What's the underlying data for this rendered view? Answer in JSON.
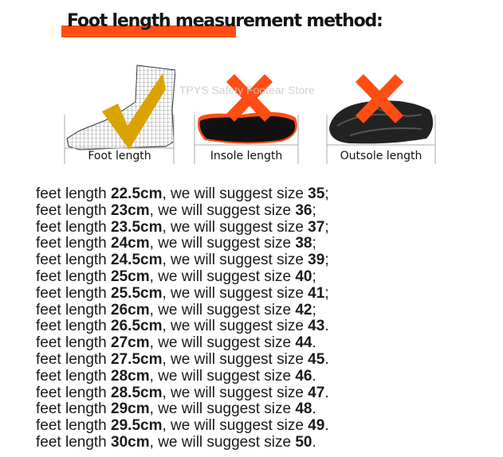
{
  "title": "Foot length measurement method:",
  "watermark": "TPYS Safety Footear Store",
  "panels": [
    {
      "label": "Foot length",
      "mark": "check-icon",
      "mark_color": "#d9a400"
    },
    {
      "label": "Insole length",
      "mark": "cross-icon",
      "mark_color": "#ff4d14"
    },
    {
      "label": "Outsole length",
      "mark": "cross-icon",
      "mark_color": "#ff4d14"
    }
  ],
  "row_text": {
    "prefix": "feet length ",
    "middle": ", we will suggest size "
  },
  "rows": [
    {
      "length": "22.5cm",
      "size": "35",
      "end": ";"
    },
    {
      "length": "23cm",
      "size": "36",
      "end": ";"
    },
    {
      "length": "23.5cm",
      "size": "37",
      "end": ";"
    },
    {
      "length": "24cm",
      "size": "38",
      "end": ";"
    },
    {
      "length": "24.5cm",
      "size": "39",
      "end": ";"
    },
    {
      "length": "25cm",
      "size": "40",
      "end": ";"
    },
    {
      "length": "25.5cm",
      "size": "41",
      "end": ";"
    },
    {
      "length": "26cm",
      "size": "42",
      "end": ";"
    },
    {
      "length": "26.5cm",
      "size": "43",
      "end": "."
    },
    {
      "length": "27cm",
      "size": "44",
      "end": "."
    },
    {
      "length": "27.5cm",
      "size": "45",
      "end": "."
    },
    {
      "length": "28cm",
      "size": "46",
      "end": "."
    },
    {
      "length": "28.5cm",
      "size": "47",
      "end": "."
    },
    {
      "length": "29cm",
      "size": "48",
      "end": "."
    },
    {
      "length": "29.5cm",
      "size": "49",
      "end": "."
    },
    {
      "length": "30cm",
      "size": "50",
      "end": "."
    }
  ],
  "colors": {
    "accent": "#ff4d14",
    "check": "#d9a400",
    "text": "#1a1a1a"
  }
}
